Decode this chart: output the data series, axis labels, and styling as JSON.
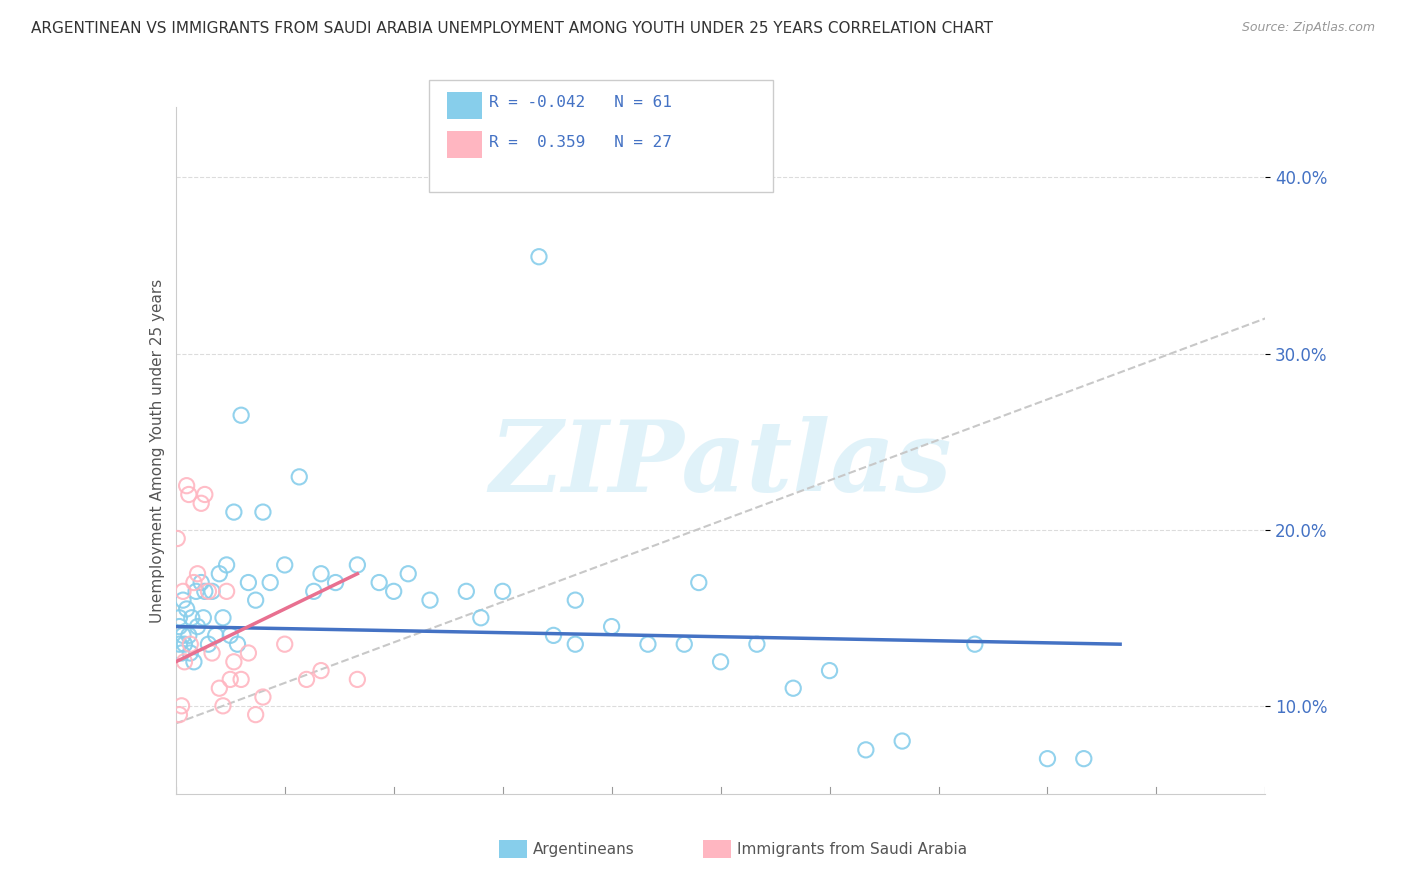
{
  "title": "ARGENTINEAN VS IMMIGRANTS FROM SAUDI ARABIA UNEMPLOYMENT AMONG YOUTH UNDER 25 YEARS CORRELATION CHART",
  "source": "Source: ZipAtlas.com",
  "ylabel": "Unemployment Among Youth under 25 years",
  "xlim": [
    0.0,
    15.0
  ],
  "ylim": [
    5.0,
    44.0
  ],
  "ytick_vals": [
    10,
    20,
    30,
    40
  ],
  "ytick_labels": [
    "10.0%",
    "20.0%",
    "30.0%",
    "40.0%"
  ],
  "color_blue": "#87CEEB",
  "color_pink": "#FFB6C1",
  "color_blue_dark": "#4472C4",
  "color_pink_dark": "#E87090",
  "color_gray_dash": "#C8C8C8",
  "watermark": "ZIPatlas",
  "blue_x": [
    0.05,
    0.05,
    0.05,
    0.08,
    0.1,
    0.1,
    0.12,
    0.15,
    0.18,
    0.2,
    0.22,
    0.25,
    0.28,
    0.3,
    0.35,
    0.38,
    0.4,
    0.45,
    0.5,
    0.55,
    0.6,
    0.65,
    0.7,
    0.75,
    0.8,
    0.85,
    0.9,
    1.0,
    1.1,
    1.2,
    1.3,
    1.5,
    1.7,
    1.9,
    2.0,
    2.2,
    2.5,
    2.8,
    3.0,
    3.2,
    3.5,
    4.0,
    4.2,
    4.5,
    5.0,
    5.2,
    5.5,
    5.5,
    6.0,
    6.5,
    7.0,
    7.2,
    7.5,
    8.0,
    8.5,
    9.0,
    9.5,
    10.0,
    11.0,
    12.0,
    12.5
  ],
  "blue_y": [
    13.5,
    14.5,
    15.0,
    13.0,
    14.0,
    16.0,
    13.5,
    15.5,
    14.0,
    13.0,
    15.0,
    12.5,
    16.5,
    14.5,
    17.0,
    15.0,
    16.5,
    13.5,
    16.5,
    14.0,
    17.5,
    15.0,
    18.0,
    14.0,
    21.0,
    13.5,
    26.5,
    17.0,
    16.0,
    21.0,
    17.0,
    18.0,
    23.0,
    16.5,
    17.5,
    17.0,
    18.0,
    17.0,
    16.5,
    17.5,
    16.0,
    16.5,
    15.0,
    16.5,
    35.5,
    14.0,
    13.5,
    16.0,
    14.5,
    13.5,
    13.5,
    17.0,
    12.5,
    13.5,
    11.0,
    12.0,
    7.5,
    8.0,
    13.5,
    7.0,
    7.0
  ],
  "pink_x": [
    0.02,
    0.05,
    0.08,
    0.1,
    0.12,
    0.15,
    0.18,
    0.2,
    0.25,
    0.3,
    0.35,
    0.4,
    0.45,
    0.5,
    0.6,
    0.65,
    0.7,
    0.75,
    0.8,
    0.9,
    1.0,
    1.1,
    1.2,
    1.5,
    1.8,
    2.0,
    2.5
  ],
  "pink_y": [
    19.5,
    9.5,
    10.0,
    16.5,
    12.5,
    22.5,
    22.0,
    13.5,
    17.0,
    17.5,
    21.5,
    22.0,
    16.5,
    13.0,
    11.0,
    10.0,
    16.5,
    11.5,
    12.5,
    11.5,
    13.0,
    9.5,
    10.5,
    13.5,
    11.5,
    12.0,
    11.5
  ],
  "blue_trend_x0": 0.0,
  "blue_trend_x1": 13.0,
  "blue_trend_y0": 14.5,
  "blue_trend_y1": 13.5,
  "pink_trend_x0": 0.0,
  "pink_trend_x1": 2.5,
  "pink_trend_y0": 12.5,
  "pink_trend_y1": 17.5,
  "gray_trend_x0": 0.0,
  "gray_trend_x1": 15.0,
  "gray_trend_y0": 9.0,
  "gray_trend_y1": 32.0
}
